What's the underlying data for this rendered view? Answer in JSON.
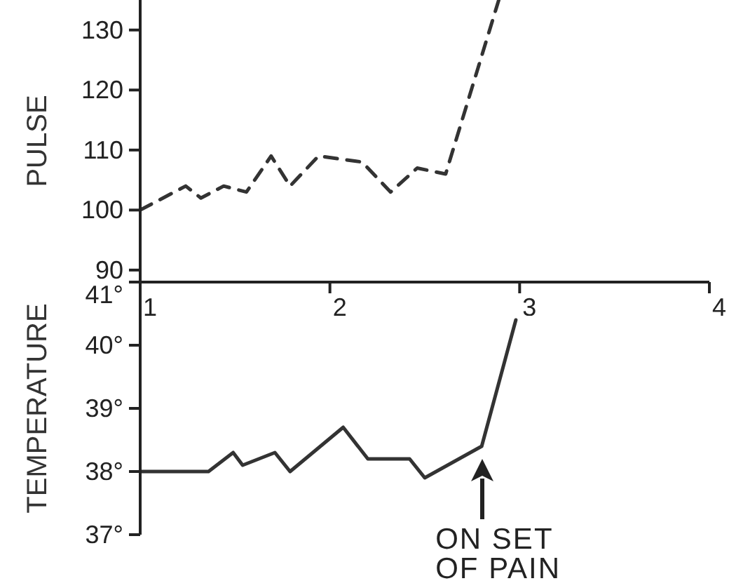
{
  "chart_data": [
    {
      "type": "line",
      "ylabel": "PULSE",
      "x": [
        1,
        1.24,
        1.32,
        1.44,
        1.56,
        1.69,
        1.79,
        1.94,
        2.17,
        2.32,
        2.46,
        2.61,
        2.89
      ],
      "series": [
        {
          "color": "#333333",
          "line_style": "dashed",
          "values": [
            100,
            104,
            102,
            104,
            103,
            109,
            104,
            109,
            108,
            103,
            107,
            106,
            135
          ]
        }
      ],
      "xlim": [
        1,
        4
      ],
      "xticks": [
        1,
        2,
        3,
        4
      ],
      "ylim": [
        88,
        135
      ],
      "yticks": [
        90,
        100,
        110,
        120,
        130
      ],
      "marker": "none"
    },
    {
      "type": "line",
      "ylabel": "TEMPERATURE",
      "x": [
        1,
        1.36,
        1.49,
        1.54,
        1.71,
        1.79,
        2.07,
        2.2,
        2.42,
        2.5,
        2.8,
        2.98
      ],
      "series": [
        {
          "color": "#333333",
          "line_style": "solid",
          "values": [
            38,
            38,
            38.3,
            38.1,
            38.3,
            38,
            38.7,
            38.2,
            38.2,
            37.9,
            38.4,
            40.4
          ]
        }
      ],
      "xlim": [
        1,
        4
      ],
      "xticks": [
        1,
        2,
        3,
        4
      ],
      "ylim": [
        37,
        41
      ],
      "yticks": [
        {
          "value": 37,
          "label": "37°"
        },
        {
          "value": 38,
          "label": "38°"
        },
        {
          "value": 39,
          "label": "39°"
        },
        {
          "value": 40,
          "label": "40°"
        },
        {
          "value": 41,
          "label": "41°"
        }
      ],
      "tick_labels": "y",
      "marker": "none",
      "annotations": [
        {
          "text": "ON SET OF PAIN",
          "x": 2.8,
          "y": 38.4
        }
      ]
    }
  ]
}
